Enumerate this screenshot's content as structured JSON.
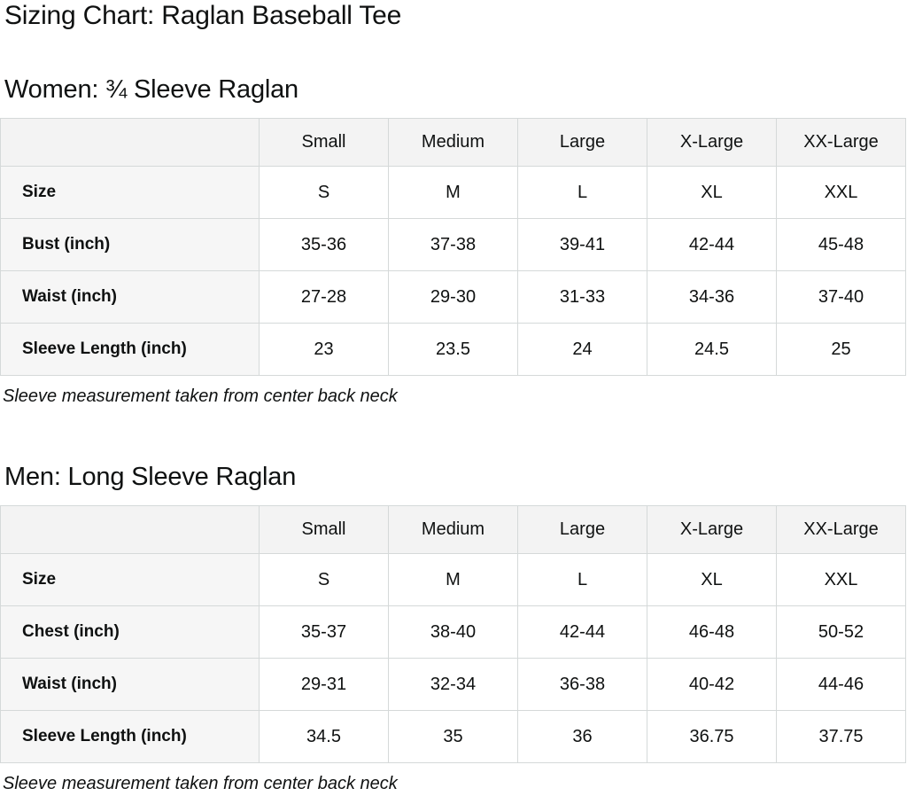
{
  "page": {
    "title": "Sizing Chart: Raglan Baseball Tee"
  },
  "sections": [
    {
      "heading": "Women: ¾ Sleeve Raglan",
      "columns": [
        "",
        "Small",
        "Medium",
        "Large",
        "X-Large",
        "XX-Large"
      ],
      "rows": [
        {
          "label": "Size",
          "values": [
            "S",
            "M",
            "L",
            "XL",
            "XXL"
          ]
        },
        {
          "label": "Bust (inch)",
          "values": [
            "35-36",
            "37-38",
            "39-41",
            "42-44",
            "45-48"
          ]
        },
        {
          "label": "Waist (inch)",
          "values": [
            "27-28",
            "29-30",
            "31-33",
            "34-36",
            "37-40"
          ]
        },
        {
          "label": "Sleeve Length (inch)",
          "values": [
            "23",
            "23.5",
            "24",
            "24.5",
            "25"
          ]
        }
      ],
      "note": "Sleeve measurement taken from center back neck"
    },
    {
      "heading": "Men: Long Sleeve Raglan",
      "columns": [
        "",
        "Small",
        "Medium",
        "Large",
        "X-Large",
        "XX-Large"
      ],
      "rows": [
        {
          "label": "Size",
          "values": [
            "S",
            "M",
            "L",
            "XL",
            "XXL"
          ]
        },
        {
          "label": "Chest (inch)",
          "values": [
            "35-37",
            "38-40",
            "42-44",
            "46-48",
            "50-52"
          ]
        },
        {
          "label": "Waist (inch)",
          "values": [
            "29-31",
            "32-34",
            "36-38",
            "40-42",
            "44-46"
          ]
        },
        {
          "label": "Sleeve Length (inch)",
          "values": [
            "34.5",
            "35",
            "36",
            "36.75",
            "37.75"
          ]
        }
      ],
      "note": "Sleeve measurement taken from center back neck"
    }
  ]
}
